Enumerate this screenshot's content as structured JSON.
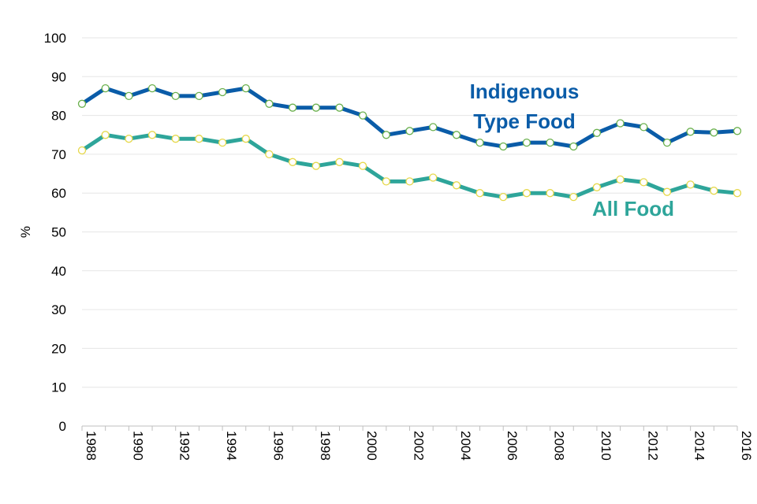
{
  "chart_data": {
    "type": "line",
    "title": "",
    "xlabel": "",
    "ylabel": "%",
    "ylim": [
      0,
      100
    ],
    "yticks": [
      0,
      10,
      20,
      30,
      40,
      50,
      60,
      70,
      80,
      90,
      100
    ],
    "xlim": [
      1988,
      2016
    ],
    "xtick_labels": [
      "1988",
      "1990",
      "1992",
      "1994",
      "1996",
      "1998",
      "2000",
      "2002",
      "2004",
      "2006",
      "2008",
      "2010",
      "2012",
      "2014",
      "2016"
    ],
    "grid": true,
    "x": [
      1988,
      1989,
      1990,
      1991,
      1992,
      1993,
      1994,
      1995,
      1996,
      1997,
      1998,
      1999,
      2000,
      2001,
      2002,
      2003,
      2004,
      2005,
      2006,
      2007,
      2008,
      2009,
      2010,
      2011,
      2012,
      2013,
      2014,
      2015,
      2016
    ],
    "series": [
      {
        "name": "Indigenous Type Food",
        "label_lines": [
          "Indigenous",
          "Type Food"
        ],
        "color": "#0a5ca8",
        "values": [
          83,
          87,
          85,
          87,
          85,
          85,
          86,
          87,
          83,
          82,
          82,
          82,
          80,
          75,
          76,
          77,
          75,
          73,
          72,
          73,
          73,
          72,
          75.5,
          78,
          77,
          73,
          75.8,
          75.6,
          76
        ]
      },
      {
        "name": "All Food",
        "label_lines": [
          "All Food"
        ],
        "color": "#2ea59a",
        "values": [
          71,
          75,
          74,
          75,
          74,
          74,
          73,
          74,
          70,
          68,
          67,
          68,
          67,
          63,
          63,
          64,
          62,
          60,
          59,
          60,
          60,
          59,
          61.5,
          63.5,
          62.8,
          60.3,
          62.2,
          60.6,
          60
        ]
      }
    ],
    "marker_fill": "#ffffff",
    "marker_stroke": "#e6d84a",
    "marker_stroke_alt": "#6ab04c"
  }
}
